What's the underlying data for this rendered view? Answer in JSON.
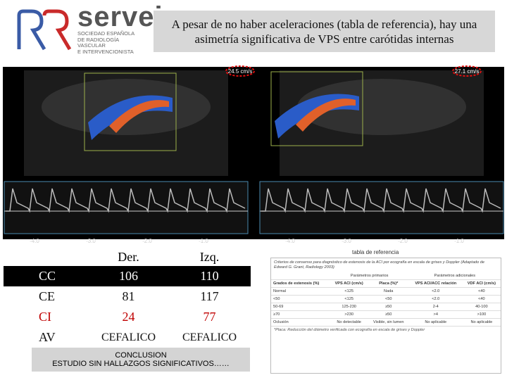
{
  "logo": {
    "name": "servei",
    "lines": [
      "SOCIEDAD ESPAÑOLA",
      "DE RADIOLOGÍA",
      "VASCULAR",
      "E INTERVENCIONISTA"
    ]
  },
  "title": "A pesar de no haber aceleraciones (tabla de referencia), hay una asimetría significativa de VPS entre carótidas internas",
  "ultrasound": {
    "left": {
      "velocity": "24.5 cm/s",
      "axis": [
        "-4.0",
        "-3.0",
        "-2.0",
        "-1.0"
      ]
    },
    "right": {
      "velocity": "27.1 cm/s",
      "axis": [
        "-4.0",
        "-3.0",
        "-2.0",
        "-1.0"
      ]
    }
  },
  "measurements": {
    "columns": [
      "Der.",
      "Izq."
    ],
    "rows": [
      {
        "label": "CC",
        "values": [
          106,
          110
        ]
      },
      {
        "label": "CE",
        "values": [
          81,
          117
        ]
      },
      {
        "label": "CI",
        "values": [
          24,
          77
        ]
      },
      {
        "label": "AV",
        "values": [
          "CEFALICO",
          "CEFALICO"
        ]
      }
    ]
  },
  "conclusion": [
    "CONCLUSION",
    "ESTUDIO SIN HALLAZGOS SIGNIFICATIVOS……"
  ],
  "reference": {
    "label": "tabla de referencia",
    "title": "Criterios de consenso para diagnóstico de estenosis de la ACI por ecografía en escala de grises y Doppler (Adaptado de Edward G. Grant, Radiology 2003)",
    "groups": [
      "Parámetros primarios",
      "Parámetros adicionales"
    ],
    "columns": [
      "Grados de estenosis (%)",
      "VPS ACI (cm/s)",
      "Placa (%)*",
      "VPS ACI/ACC relación",
      "VDF ACI (cm/s)"
    ],
    "rows": [
      [
        "Normal",
        "<125",
        "Nada",
        "<2.0",
        "<40"
      ],
      [
        "<50",
        "<125",
        "<50",
        "<2.0",
        "<40"
      ],
      [
        "50-69",
        "125-230",
        "≥50",
        "2-4",
        "40-100"
      ],
      [
        "≥70",
        ">230",
        "≥50",
        ">4",
        ">100"
      ],
      [
        "Oclusión",
        "No detectable",
        "Visible, sin lumen",
        "No aplicable",
        "No aplicable"
      ]
    ],
    "footnote": "*Placa: Reducción del diámetro verificada con ecografía en escala de grises y Doppler"
  }
}
